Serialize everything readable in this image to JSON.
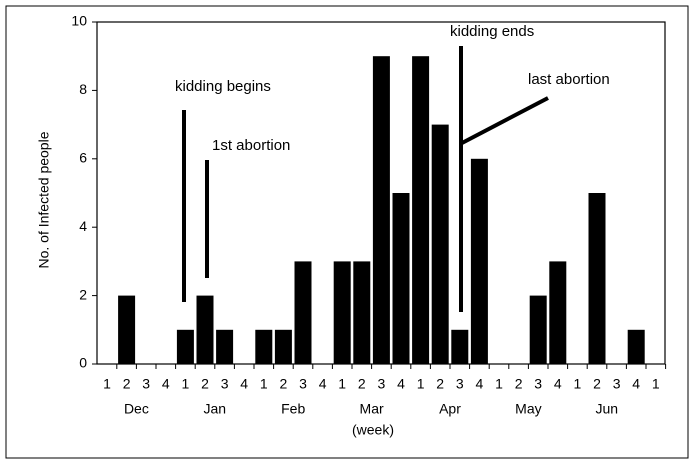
{
  "chart_data": {
    "type": "bar",
    "y_label": "No. of Infected people",
    "x_label": "(week)",
    "categories": [
      "1",
      "2",
      "3",
      "4",
      "1",
      "2",
      "3",
      "4",
      "1",
      "2",
      "3",
      "4",
      "1",
      "2",
      "3",
      "4",
      "1",
      "2",
      "3",
      "4",
      "1",
      "2",
      "3",
      "4",
      "1",
      "2",
      "3",
      "4",
      "1"
    ],
    "months": [
      "Dec",
      "Jan",
      "Feb",
      "Mar",
      "Apr",
      "May",
      "Jun"
    ],
    "values": [
      0,
      2,
      0,
      0,
      1,
      2,
      1,
      0,
      1,
      1,
      3,
      0,
      3,
      3,
      9,
      5,
      9,
      7,
      1,
      6,
      0,
      0,
      2,
      3,
      0,
      5,
      0,
      1,
      0
    ],
    "color": "#000000",
    "ylim": [
      0,
      10
    ],
    "yticks": [
      0,
      2,
      4,
      6,
      8,
      10
    ],
    "grid": false,
    "annotations": [
      "kidding begins",
      "1st abortion",
      "kidding ends",
      "last abortion"
    ]
  }
}
